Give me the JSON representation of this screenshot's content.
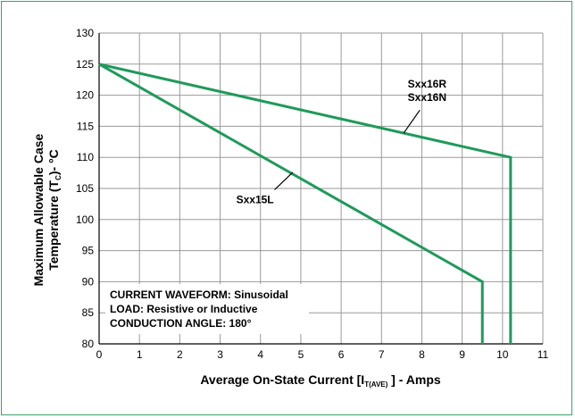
{
  "colors": {
    "series": "#1f9a5a",
    "grid": "#9a9a9a",
    "frame": "#3aa36b"
  },
  "chart_data": {
    "type": "line",
    "xlabel_parts": {
      "before": "Average On-State Current [I",
      "sub": "T(AVE)",
      "after": " ] - Amps"
    },
    "ylabel_parts": {
      "line1": "Maximum Allowable Case",
      "line2_before": "Temperature (T",
      "line2_sub": "C",
      "line2_after": ")- °C"
    },
    "xlim": [
      0,
      11
    ],
    "ylim": [
      80,
      130
    ],
    "xticks": [
      "0",
      "1",
      "2",
      "3",
      "4",
      "5",
      "6",
      "7",
      "8",
      "9",
      "10",
      "11"
    ],
    "yticks": [
      "80",
      "85",
      "90",
      "95",
      "100",
      "105",
      "110",
      "115",
      "120",
      "125",
      "130"
    ],
    "grid": true,
    "series": [
      {
        "name": "Sxx16R Sxx16N",
        "label_lines": [
          "Sxx16R",
          "Sxx16N"
        ],
        "points": [
          [
            0,
            125
          ],
          [
            10.2,
            110
          ],
          [
            10.2,
            80
          ]
        ]
      },
      {
        "name": "Sxx15L",
        "label_lines": [
          "Sxx15L"
        ],
        "points": [
          [
            0,
            125
          ],
          [
            9.5,
            90
          ],
          [
            9.5,
            80
          ]
        ]
      }
    ],
    "note_lines": [
      "CURRENT WAVEFORM: Sinusoidal",
      "LOAD: Resistive or Inductive",
      "CONDUCTION ANGLE: 180°"
    ]
  }
}
